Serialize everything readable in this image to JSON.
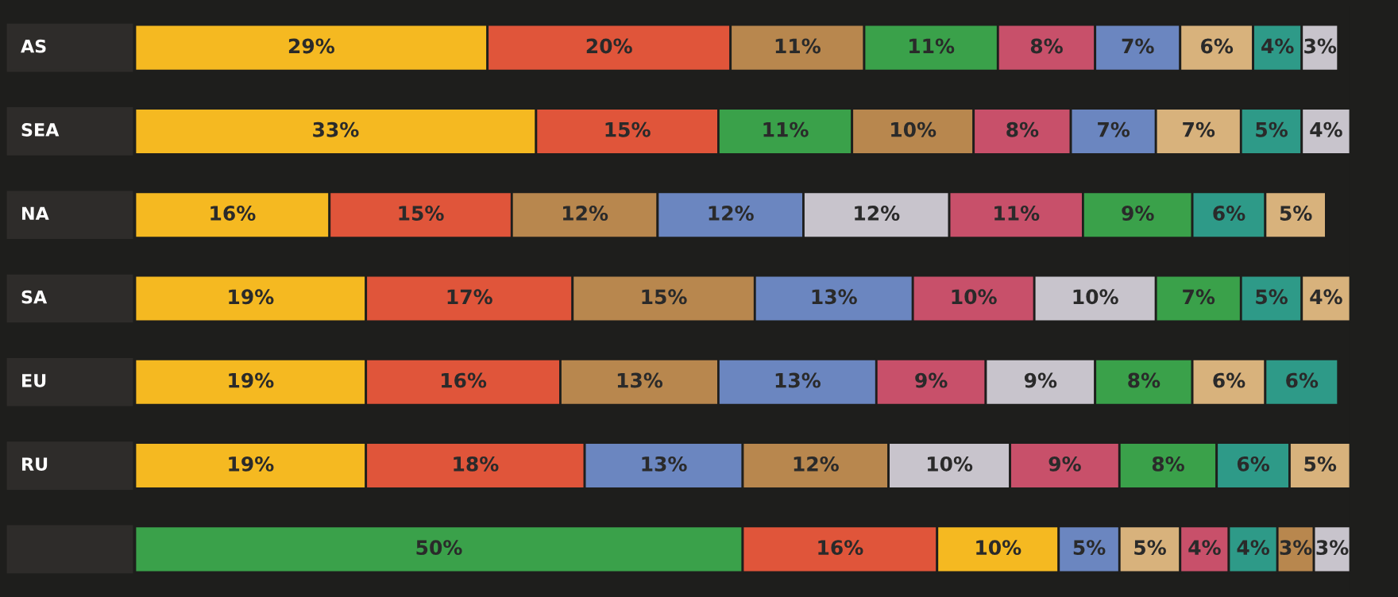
{
  "chart_data": {
    "type": "bar",
    "orientation": "horizontal",
    "stacked": true,
    "categories": [
      "AS",
      "SEA",
      "NA",
      "SA",
      "EU",
      "RU",
      null
    ],
    "series": [
      {
        "colors": [
          "#f5b921",
          "#f5b921",
          "#f5b921",
          "#f5b921",
          "#f5b921",
          "#f5b921",
          "#3aa14a"
        ],
        "values": [
          29,
          33,
          16,
          19,
          19,
          19,
          50
        ],
        "value_labels": [
          "29%",
          "33%",
          "16%",
          "19%",
          "19%",
          "19%",
          "50%"
        ]
      },
      {
        "colors": [
          "#e0553a",
          "#e0553a",
          "#e0553a",
          "#e0553a",
          "#e0553a",
          "#e0553a",
          "#e0553a"
        ],
        "values": [
          20,
          15,
          15,
          17,
          16,
          18,
          16
        ],
        "value_labels": [
          "20%",
          "15%",
          "15%",
          "17%",
          "16%",
          "18%",
          "16%"
        ]
      },
      {
        "colors": [
          "#b8874e",
          "#3aa14a",
          "#b8874e",
          "#b8874e",
          "#b8874e",
          "#6b86c0",
          "#f5b921"
        ],
        "values": [
          11,
          11,
          12,
          15,
          13,
          13,
          10
        ],
        "value_labels": [
          "11%",
          "11%",
          "12%",
          "15%",
          "13%",
          "13%",
          "10%"
        ]
      },
      {
        "colors": [
          "#3aa14a",
          "#b8874e",
          "#6b86c0",
          "#6b86c0",
          "#6b86c0",
          "#b8874e",
          "#6b86c0"
        ],
        "values": [
          11,
          10,
          12,
          13,
          13,
          12,
          5
        ],
        "value_labels": [
          "11%",
          "10%",
          "12%",
          "13%",
          "13%",
          "12%",
          "5%"
        ]
      },
      {
        "colors": [
          "#c8506a",
          "#c8506a",
          "#c8c4cc",
          "#c8506a",
          "#c8506a",
          "#c8c4cc",
          "#d8b27c"
        ],
        "values": [
          8,
          8,
          12,
          10,
          9,
          10,
          5
        ],
        "value_labels": [
          "8%",
          "8%",
          "12%",
          "10%",
          "9%",
          "10%",
          "5%"
        ]
      },
      {
        "colors": [
          "#6b86c0",
          "#6b86c0",
          "#c8506a",
          "#c8c4cc",
          "#c8c4cc",
          "#c8506a",
          "#c8506a"
        ],
        "values": [
          7,
          7,
          11,
          10,
          9,
          9,
          4
        ],
        "value_labels": [
          "7%",
          "7%",
          "11%",
          "10%",
          "9%",
          "9%",
          "4%"
        ]
      },
      {
        "colors": [
          "#d8b27c",
          "#d8b27c",
          "#3aa14a",
          "#3aa14a",
          "#3aa14a",
          "#3aa14a",
          "#2e9a88"
        ],
        "values": [
          6,
          7,
          9,
          7,
          8,
          8,
          4
        ],
        "value_labels": [
          "6%",
          "7%",
          "9%",
          "7%",
          "8%",
          "8%",
          "4%"
        ]
      },
      {
        "colors": [
          "#2e9a88",
          "#2e9a88",
          "#2e9a88",
          "#2e9a88",
          "#d8b27c",
          "#2e9a88",
          "#b8874e"
        ],
        "values": [
          4,
          5,
          6,
          5,
          6,
          6,
          3
        ],
        "value_labels": [
          "4%",
          "5%",
          "6%",
          "5%",
          "6%",
          "6%",
          "3%"
        ]
      },
      {
        "colors": [
          "#c8c4cc",
          "#c8c4cc",
          "#d8b27c",
          "#d8b27c",
          "#2e9a88",
          "#d8b27c",
          "#c8c4cc"
        ],
        "values": [
          3,
          4,
          5,
          4,
          6,
          5,
          3
        ],
        "value_labels": [
          "3%",
          "4%",
          "5%",
          "4%",
          "6%",
          "5%",
          "3%"
        ]
      }
    ]
  }
}
